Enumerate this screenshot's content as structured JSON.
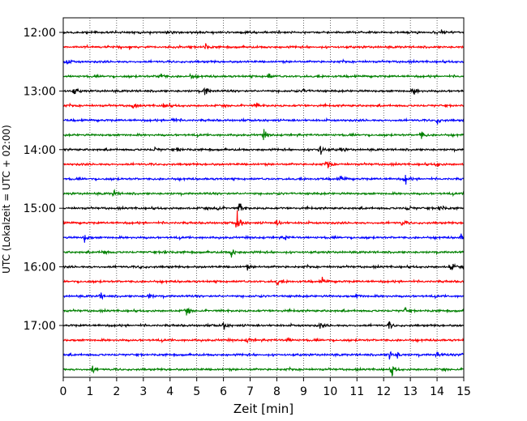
{
  "chart_data": {
    "type": "line",
    "chart_kind": "helicorder seismogram",
    "xlabel": "Zeit  [min]",
    "ylabel": "UTC (Lokalzeit = UTC + 02:00)",
    "xlim": [
      0,
      15
    ],
    "x_ticks": [
      "0",
      "1",
      "2",
      "3",
      "4",
      "5",
      "6",
      "7",
      "8",
      "9",
      "10",
      "11",
      "12",
      "13",
      "14",
      "15"
    ],
    "y_tick_labels": [
      "12:00",
      "13:00",
      "14:00",
      "15:00",
      "16:00",
      "17:00"
    ],
    "trace_count": 24,
    "trace_interval_min": 15,
    "start_time": "12:00",
    "trace_colors": [
      "#000000",
      "#ff0000",
      "#0000ff",
      "#008000"
    ],
    "grid": "vertical dotted at every minute",
    "legend": "none",
    "events": [
      {
        "trace": 0,
        "x": 3.9,
        "amp": 0.3
      },
      {
        "trace": 0,
        "x": 14.2,
        "amp": 0.3
      },
      {
        "trace": 1,
        "x": 5.3,
        "amp": 0.5
      },
      {
        "trace": 2,
        "x": 0.1,
        "amp": 0.6
      },
      {
        "trace": 3,
        "x": 3.6,
        "amp": 0.7
      },
      {
        "trace": 3,
        "x": 4.8,
        "amp": 0.3
      },
      {
        "trace": 3,
        "x": 7.7,
        "amp": 0.4
      },
      {
        "trace": 4,
        "x": 0.4,
        "amp": 0.5
      },
      {
        "trace": 4,
        "x": 5.3,
        "amp": 0.9
      },
      {
        "trace": 4,
        "x": 9.0,
        "amp": 0.3
      },
      {
        "trace": 4,
        "x": 13.1,
        "amp": 0.7
      },
      {
        "trace": 5,
        "x": 2.6,
        "amp": 0.5
      },
      {
        "trace": 5,
        "x": 3.8,
        "amp": 0.3
      },
      {
        "trace": 5,
        "x": 7.2,
        "amp": 0.3
      },
      {
        "trace": 6,
        "x": 4.1,
        "amp": 0.4
      },
      {
        "trace": 6,
        "x": 14.0,
        "amp": 0.5
      },
      {
        "trace": 7,
        "x": 7.5,
        "amp": 0.6
      },
      {
        "trace": 7,
        "x": 13.4,
        "amp": 0.6
      },
      {
        "trace": 8,
        "x": 3.4,
        "amp": 0.3
      },
      {
        "trace": 8,
        "x": 4.3,
        "amp": 0.3
      },
      {
        "trace": 8,
        "x": 9.6,
        "amp": 0.9
      },
      {
        "trace": 8,
        "x": 10.4,
        "amp": 0.3
      },
      {
        "trace": 9,
        "x": 9.9,
        "amp": 0.6
      },
      {
        "trace": 9,
        "x": 14.0,
        "amp": 0.3
      },
      {
        "trace": 10,
        "x": 10.4,
        "amp": 0.5
      },
      {
        "trace": 10,
        "x": 12.8,
        "amp": 0.6
      },
      {
        "trace": 11,
        "x": 1.9,
        "amp": 0.4
      },
      {
        "trace": 12,
        "x": 5.7,
        "amp": 0.6
      },
      {
        "trace": 12,
        "x": 6.6,
        "amp": 0.8
      },
      {
        "trace": 12,
        "x": 12.9,
        "amp": 0.4
      },
      {
        "trace": 12,
        "x": 14.1,
        "amp": 0.6
      },
      {
        "trace": 13,
        "x": 6.5,
        "amp": 1.5
      },
      {
        "trace": 13,
        "x": 8.0,
        "amp": 0.5
      },
      {
        "trace": 13,
        "x": 12.7,
        "amp": 0.4
      },
      {
        "trace": 14,
        "x": 0.8,
        "amp": 0.6
      },
      {
        "trace": 14,
        "x": 8.3,
        "amp": 0.3
      },
      {
        "trace": 14,
        "x": 14.9,
        "amp": 0.4
      },
      {
        "trace": 15,
        "x": 1.5,
        "amp": 0.4
      },
      {
        "trace": 15,
        "x": 3.8,
        "amp": 0.3
      },
      {
        "trace": 15,
        "x": 6.3,
        "amp": 0.7
      },
      {
        "trace": 16,
        "x": 2.9,
        "amp": 0.2
      },
      {
        "trace": 16,
        "x": 6.9,
        "amp": 0.3
      },
      {
        "trace": 16,
        "x": 14.5,
        "amp": 0.7
      },
      {
        "trace": 17,
        "x": 8.0,
        "amp": 0.4
      },
      {
        "trace": 17,
        "x": 9.7,
        "amp": 0.4
      },
      {
        "trace": 18,
        "x": 1.4,
        "amp": 0.4
      },
      {
        "trace": 18,
        "x": 3.2,
        "amp": 0.4
      },
      {
        "trace": 18,
        "x": 11.0,
        "amp": 0.3
      },
      {
        "trace": 19,
        "x": 4.6,
        "amp": 0.5
      },
      {
        "trace": 19,
        "x": 12.8,
        "amp": 0.3
      },
      {
        "trace": 20,
        "x": 6.0,
        "amp": 0.5
      },
      {
        "trace": 20,
        "x": 9.6,
        "amp": 0.4
      },
      {
        "trace": 20,
        "x": 12.2,
        "amp": 0.5
      },
      {
        "trace": 21,
        "x": 6.9,
        "amp": 0.4
      },
      {
        "trace": 21,
        "x": 8.4,
        "amp": 0.4
      },
      {
        "trace": 22,
        "x": 12.2,
        "amp": 0.7
      },
      {
        "trace": 22,
        "x": 12.5,
        "amp": 0.5
      },
      {
        "trace": 22,
        "x": 14.0,
        "amp": 0.4
      },
      {
        "trace": 22,
        "x": 14.9,
        "amp": 0.4
      },
      {
        "trace": 23,
        "x": 1.1,
        "amp": 0.5
      },
      {
        "trace": 23,
        "x": 12.3,
        "amp": 0.8
      }
    ]
  }
}
